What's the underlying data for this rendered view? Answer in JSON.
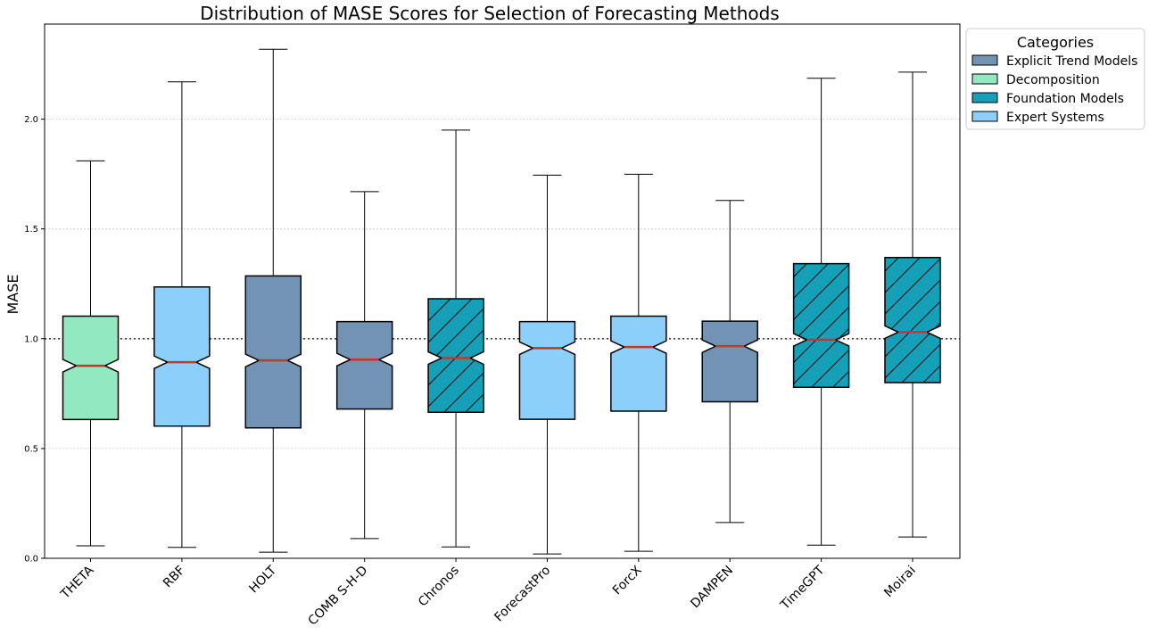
{
  "chart_data": {
    "type": "box",
    "title": "Distribution of MASE Scores for Selection of Forecasting Methods",
    "xlabel": "",
    "ylabel": "MASE",
    "ylim": [
      0,
      2.44
    ],
    "yticks": [
      "0.0",
      "0.5",
      "1.0",
      "1.5",
      "2.0"
    ],
    "reference_line": 1.0,
    "grid": "horizontal dotted",
    "legend": {
      "title": "Categories",
      "placement": "outside-top-right",
      "entries": [
        {
          "label": "Explicit Trend Models",
          "color": "#7293b3",
          "hatch": false
        },
        {
          "label": "Decomposition",
          "color": "#92e8c0",
          "hatch": false
        },
        {
          "label": "Foundation Models",
          "color": "#16a0b8",
          "hatch": false
        },
        {
          "label": "Expert Systems",
          "color": "#8ccffb",
          "hatch": false
        }
      ]
    },
    "boxes": [
      {
        "label": "THETA",
        "category": 1,
        "hatch": false,
        "whisker_low": 0.057,
        "q1": 0.632,
        "median": 0.877,
        "q3": 1.103,
        "whisker_high": 1.81
      },
      {
        "label": "RBF",
        "category": 3,
        "hatch": false,
        "whisker_low": 0.05,
        "q1": 0.602,
        "median": 0.893,
        "q3": 1.236,
        "whisker_high": 2.17
      },
      {
        "label": "HOLT",
        "category": 0,
        "hatch": false,
        "whisker_low": 0.028,
        "q1": 0.594,
        "median": 0.901,
        "q3": 1.286,
        "whisker_high": 2.318
      },
      {
        "label": "COMB S-H-D",
        "category": 0,
        "hatch": false,
        "whisker_low": 0.09,
        "q1": 0.68,
        "median": 0.905,
        "q3": 1.078,
        "whisker_high": 1.67
      },
      {
        "label": "Chronos",
        "category": 2,
        "hatch": true,
        "whisker_low": 0.052,
        "q1": 0.665,
        "median": 0.912,
        "q3": 1.182,
        "whisker_high": 1.95
      },
      {
        "label": "ForecastPro",
        "category": 3,
        "hatch": false,
        "whisker_low": 0.02,
        "q1": 0.633,
        "median": 0.957,
        "q3": 1.078,
        "whisker_high": 1.745
      },
      {
        "label": "ForcX",
        "category": 3,
        "hatch": false,
        "whisker_low": 0.032,
        "q1": 0.67,
        "median": 0.962,
        "q3": 1.103,
        "whisker_high": 1.749
      },
      {
        "label": "DAMPEN",
        "category": 0,
        "hatch": false,
        "whisker_low": 0.163,
        "q1": 0.713,
        "median": 0.966,
        "q3": 1.08,
        "whisker_high": 1.63
      },
      {
        "label": "TimeGPT",
        "category": 2,
        "hatch": true,
        "whisker_low": 0.06,
        "q1": 0.779,
        "median": 0.995,
        "q3": 1.342,
        "whisker_high": 2.186
      },
      {
        "label": "Moirai",
        "category": 2,
        "hatch": true,
        "whisker_low": 0.097,
        "q1": 0.8,
        "median": 1.03,
        "q3": 1.37,
        "whisker_high": 2.214
      }
    ],
    "colors": {
      "median_line": "#c0392b",
      "reference_line": "#444444",
      "grid": "#cccccc",
      "axis": "#000000"
    }
  }
}
